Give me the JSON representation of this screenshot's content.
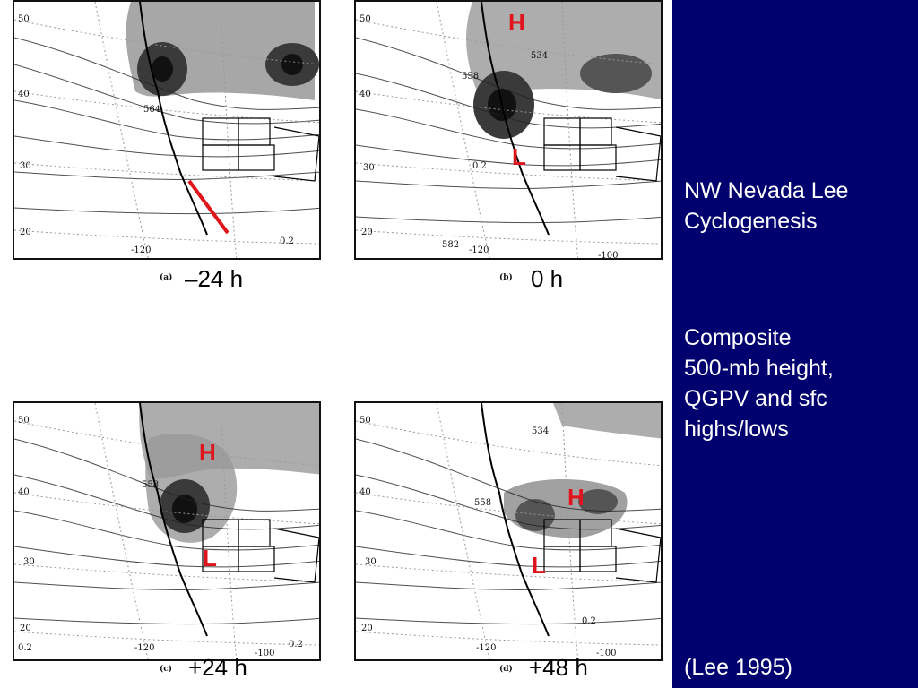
{
  "side": {
    "title": "NW Nevada Lee\nCyclogenesis",
    "description": "Composite\n500-mb height,\nQGPV and sfc\nhighs/lows",
    "citation": "(Lee 1995)"
  },
  "panels": [
    {
      "caption": "(a)",
      "time": "–24 h",
      "lat_labels": [
        "50",
        "40",
        "30",
        "20"
      ],
      "lon_labels": [
        "-120",
        "0.2"
      ],
      "contour_labels": [
        "564"
      ],
      "markers": []
    },
    {
      "caption": "(b)",
      "time": "0 h",
      "lat_labels": [
        "50",
        "40",
        "30",
        "20"
      ],
      "lon_labels": [
        "582",
        "-120",
        "-100"
      ],
      "contour_labels": [
        "534",
        "558",
        "0.2"
      ],
      "markers": [
        "H",
        "L"
      ]
    },
    {
      "caption": "(c)",
      "time": "+24 h",
      "lat_labels": [
        "50",
        "40",
        "30",
        "20"
      ],
      "lon_labels": [
        "-120",
        "-100",
        "0.2",
        "0.2"
      ],
      "contour_labels": [
        "558"
      ],
      "markers": [
        "H",
        "L"
      ]
    },
    {
      "caption": "(d)",
      "time": "+48 h",
      "lat_labels": [
        "50",
        "40",
        "30",
        "20"
      ],
      "lon_labels": [
        "-120",
        "-100",
        "0.2"
      ],
      "contour_labels": [
        "534",
        "558"
      ],
      "markers": [
        "H",
        "L"
      ]
    }
  ],
  "colors": {
    "marker": "#e0141b",
    "sidebar": "#00006e",
    "sidebar_text": "#ffffff"
  }
}
